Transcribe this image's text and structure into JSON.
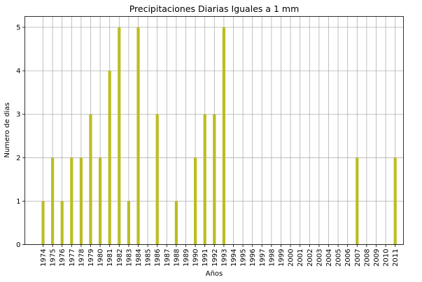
{
  "chart_data": {
    "type": "bar",
    "title": "Precipitaciones Diarias Iguales a 1 mm",
    "xlabel": "Años",
    "ylabel": "Numero de dias",
    "categories": [
      "1974",
      "1975",
      "1976",
      "1977",
      "1978",
      "1979",
      "1980",
      "1981",
      "1982",
      "1983",
      "1984",
      "1985",
      "1986",
      "1987",
      "1988",
      "1989",
      "1990",
      "1991",
      "1992",
      "1993",
      "1994",
      "1995",
      "1996",
      "1997",
      "1998",
      "1999",
      "2000",
      "2001",
      "2002",
      "2003",
      "2004",
      "2005",
      "2006",
      "2007",
      "2008",
      "2009",
      "2010",
      "2011"
    ],
    "values": [
      1,
      2,
      1,
      2,
      2,
      3,
      2,
      4,
      5,
      1,
      5,
      0,
      3,
      0,
      1,
      0,
      2,
      3,
      3,
      5,
      0,
      0,
      0,
      0,
      0,
      0,
      0,
      0,
      0,
      0,
      0,
      0,
      0,
      2,
      0,
      0,
      0,
      2
    ],
    "ylim": [
      0,
      5.25
    ],
    "yticks": [
      0,
      1,
      2,
      3,
      4,
      5
    ],
    "grid": true,
    "bar_color": "#bcbd22"
  }
}
